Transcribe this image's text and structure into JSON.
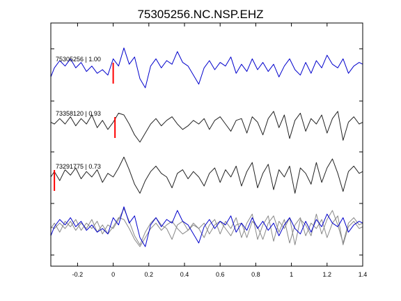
{
  "chart_data": {
    "type": "line",
    "title": "75305256.NC.NSP.EHZ",
    "xlabel": "",
    "ylabel": "",
    "xlim": [
      -0.35,
      1.4
    ],
    "xticks": [
      "-0.2",
      "0",
      "0.2",
      "0.4",
      "0.6",
      "0.8",
      "1",
      "1.2",
      "1.4"
    ],
    "grid": false,
    "colors": {
      "blue": "#0000cc",
      "black": "#222222",
      "gray": "#888888",
      "pick": "#ff0000"
    },
    "series": [
      {
        "name": "75305256 | 1.00",
        "color": "#0000cc",
        "pick": 0.0,
        "x": [
          -0.35,
          -0.33,
          -0.3,
          -0.27,
          -0.24,
          -0.21,
          -0.18,
          -0.15,
          -0.12,
          -0.09,
          -0.06,
          -0.03,
          0.0,
          0.03,
          0.06,
          0.09,
          0.12,
          0.15,
          0.18,
          0.21,
          0.24,
          0.27,
          0.3,
          0.33,
          0.36,
          0.39,
          0.42,
          0.45,
          0.48,
          0.51,
          0.54,
          0.57,
          0.6,
          0.63,
          0.66,
          0.69,
          0.72,
          0.75,
          0.78,
          0.81,
          0.84,
          0.87,
          0.9,
          0.93,
          0.96,
          0.99,
          1.02,
          1.05,
          1.08,
          1.11,
          1.14,
          1.17,
          1.2,
          1.23,
          1.26,
          1.29,
          1.32,
          1.35,
          1.38,
          1.4
        ],
        "y": [
          -0.4,
          0.1,
          0.5,
          0.2,
          0.6,
          0.1,
          0.4,
          -0.1,
          0.2,
          -0.2,
          0.0,
          -0.3,
          0.6,
          0.2,
          1.2,
          0.3,
          0.7,
          -0.5,
          -1.0,
          0.2,
          0.6,
          0.1,
          0.5,
          0.3,
          1.0,
          0.4,
          0.2,
          -0.3,
          -0.8,
          0.1,
          0.5,
          0.0,
          0.4,
          0.2,
          0.7,
          -0.2,
          0.3,
          -0.1,
          0.6,
          0.0,
          0.4,
          -0.1,
          0.3,
          -0.4,
          0.2,
          0.6,
          0.0,
          -0.3,
          0.4,
          -0.2,
          0.5,
          0.1,
          0.8,
          0.3,
          0.1,
          0.6,
          -0.2,
          0.2,
          0.4,
          0.3
        ]
      },
      {
        "name": "73358120 | 0.93",
        "color": "#222222",
        "pick": 0.01,
        "x": [
          -0.35,
          -0.33,
          -0.3,
          -0.27,
          -0.24,
          -0.21,
          -0.18,
          -0.15,
          -0.12,
          -0.09,
          -0.06,
          -0.03,
          0.0,
          0.03,
          0.06,
          0.09,
          0.12,
          0.15,
          0.18,
          0.21,
          0.24,
          0.27,
          0.3,
          0.33,
          0.36,
          0.39,
          0.42,
          0.45,
          0.48,
          0.51,
          0.54,
          0.57,
          0.6,
          0.63,
          0.66,
          0.69,
          0.72,
          0.75,
          0.78,
          0.81,
          0.84,
          0.87,
          0.9,
          0.93,
          0.96,
          0.99,
          1.02,
          1.05,
          1.08,
          1.11,
          1.14,
          1.17,
          1.2,
          1.23,
          1.26,
          1.29,
          1.32,
          1.35,
          1.38,
          1.4
        ],
        "y": [
          0.1,
          0.0,
          0.3,
          0.0,
          0.4,
          -0.1,
          0.3,
          0.0,
          0.5,
          -0.2,
          0.2,
          -0.3,
          0.1,
          0.6,
          0.5,
          0.0,
          -0.6,
          -1.0,
          -0.5,
          0.0,
          0.3,
          -0.1,
          0.2,
          0.4,
          0.0,
          -0.3,
          -0.1,
          0.2,
          0.0,
          0.3,
          -0.3,
          0.2,
          0.4,
          0.0,
          -0.4,
          0.2,
          0.3,
          -0.5,
          0.4,
          0.1,
          -0.6,
          0.3,
          0.7,
          -0.2,
          0.5,
          -0.8,
          0.2,
          0.6,
          -0.4,
          0.3,
          0.0,
          0.5,
          -0.5,
          0.3,
          0.7,
          -0.9,
          0.1,
          0.4,
          0.0,
          0.1
        ]
      },
      {
        "name": "73291775 | 0.73",
        "color": "#222222",
        "pick": -0.33,
        "x": [
          -0.35,
          -0.33,
          -0.3,
          -0.27,
          -0.24,
          -0.21,
          -0.18,
          -0.15,
          -0.12,
          -0.09,
          -0.06,
          -0.03,
          0.0,
          0.03,
          0.06,
          0.09,
          0.12,
          0.15,
          0.18,
          0.21,
          0.24,
          0.27,
          0.3,
          0.33,
          0.36,
          0.39,
          0.42,
          0.45,
          0.48,
          0.51,
          0.54,
          0.57,
          0.6,
          0.63,
          0.66,
          0.69,
          0.72,
          0.75,
          0.78,
          0.81,
          0.84,
          0.87,
          0.9,
          0.93,
          0.96,
          0.99,
          1.02,
          1.05,
          1.08,
          1.11,
          1.14,
          1.17,
          1.2,
          1.23,
          1.26,
          1.29,
          1.32,
          1.35,
          1.38,
          1.4
        ],
        "y": [
          0.0,
          0.3,
          -0.2,
          0.4,
          0.1,
          0.5,
          -0.1,
          0.3,
          0.0,
          0.4,
          -0.3,
          0.2,
          0.0,
          0.5,
          1.1,
          0.4,
          -0.4,
          -0.9,
          -0.2,
          0.3,
          0.6,
          0.2,
          0.0,
          -0.6,
          0.2,
          0.4,
          -0.1,
          0.3,
          0.0,
          -0.5,
          0.2,
          0.5,
          -0.3,
          0.4,
          0.0,
          0.6,
          -0.5,
          0.3,
          0.8,
          -0.6,
          0.2,
          0.7,
          -0.7,
          0.4,
          0.0,
          0.6,
          -0.9,
          0.5,
          0.2,
          -0.4,
          0.8,
          -0.3,
          0.5,
          1.0,
          0.2,
          -0.8,
          0.3,
          0.6,
          0.2,
          0.3
        ]
      },
      {
        "name": "",
        "color": "#0000cc",
        "x": [
          -0.35,
          -0.33,
          -0.3,
          -0.27,
          -0.24,
          -0.21,
          -0.18,
          -0.15,
          -0.12,
          -0.09,
          -0.06,
          -0.03,
          0.0,
          0.03,
          0.06,
          0.09,
          0.12,
          0.15,
          0.18,
          0.21,
          0.24,
          0.27,
          0.3,
          0.33,
          0.36,
          0.39,
          0.42,
          0.45,
          0.48,
          0.51,
          0.54,
          0.57,
          0.6,
          0.63,
          0.66,
          0.69,
          0.72,
          0.75,
          0.78,
          0.81,
          0.84,
          0.87,
          0.9,
          0.93,
          0.96,
          0.99,
          1.02,
          1.05,
          1.08,
          1.11,
          1.14,
          1.17,
          1.2,
          1.23,
          1.26,
          1.29,
          1.32,
          1.35,
          1.38,
          1.4
        ],
        "y": [
          -0.4,
          0.1,
          0.5,
          0.2,
          0.6,
          0.1,
          0.4,
          -0.1,
          0.2,
          -0.2,
          0.0,
          -0.3,
          0.6,
          0.2,
          1.2,
          0.3,
          0.7,
          -0.5,
          -1.0,
          0.2,
          0.6,
          0.1,
          0.5,
          0.3,
          1.0,
          0.4,
          0.2,
          -0.3,
          -0.8,
          0.1,
          0.5,
          0.0,
          0.4,
          0.2,
          0.7,
          -0.2,
          0.3,
          -0.1,
          0.6,
          0.0,
          0.4,
          -0.1,
          0.3,
          -0.4,
          0.2,
          0.6,
          0.0,
          -0.3,
          0.4,
          -0.2,
          0.5,
          0.1,
          0.8,
          0.3,
          0.1,
          0.6,
          -0.2,
          0.2,
          0.4,
          0.3
        ]
      },
      {
        "name": "",
        "color": "#888888",
        "x": [
          -0.35,
          -0.33,
          -0.3,
          -0.27,
          -0.24,
          -0.21,
          -0.18,
          -0.15,
          -0.12,
          -0.09,
          -0.06,
          -0.03,
          0.0,
          0.03,
          0.06,
          0.09,
          0.12,
          0.15,
          0.18,
          0.21,
          0.24,
          0.27,
          0.3,
          0.33,
          0.36,
          0.39,
          0.42,
          0.45,
          0.48,
          0.51,
          0.54,
          0.57,
          0.6,
          0.63,
          0.66,
          0.69,
          0.72,
          0.75,
          0.78,
          0.81,
          0.84,
          0.87,
          0.9,
          0.93,
          0.96,
          0.99,
          1.02,
          1.05,
          1.08,
          1.11,
          1.14,
          1.17,
          1.2,
          1.23,
          1.26,
          1.29,
          1.32,
          1.35,
          1.38,
          1.4
        ],
        "y": [
          0.1,
          0.0,
          0.3,
          0.0,
          0.4,
          -0.1,
          0.3,
          0.0,
          0.5,
          -0.2,
          0.2,
          -0.3,
          0.1,
          0.6,
          0.5,
          0.0,
          -0.6,
          -1.0,
          -0.5,
          0.0,
          0.3,
          -0.1,
          0.2,
          0.4,
          0.0,
          -0.3,
          -0.1,
          0.2,
          0.0,
          0.3,
          -0.3,
          0.2,
          0.4,
          0.0,
          -0.4,
          0.2,
          0.3,
          -0.5,
          0.4,
          0.1,
          -0.6,
          0.3,
          0.7,
          -0.2,
          0.5,
          -0.8,
          0.2,
          0.6,
          -0.4,
          0.3,
          0.0,
          0.5,
          -0.5,
          0.3,
          0.7,
          -0.9,
          0.1,
          0.4,
          0.0,
          0.1
        ]
      },
      {
        "name": "",
        "color": "#888888",
        "x": [
          -0.35,
          -0.33,
          -0.3,
          -0.27,
          -0.24,
          -0.21,
          -0.18,
          -0.15,
          -0.12,
          -0.09,
          -0.06,
          -0.03,
          0.0,
          0.03,
          0.06,
          0.09,
          0.12,
          0.15,
          0.18,
          0.21,
          0.24,
          0.27,
          0.3,
          0.33,
          0.36,
          0.39,
          0.42,
          0.45,
          0.48,
          0.51,
          0.54,
          0.57,
          0.6,
          0.63,
          0.66,
          0.69,
          0.72,
          0.75,
          0.78,
          0.81,
          0.84,
          0.87,
          0.9,
          0.93,
          0.96,
          0.99,
          1.02,
          1.05,
          1.08,
          1.11,
          1.14,
          1.17,
          1.2,
          1.23,
          1.26,
          1.29,
          1.32,
          1.35,
          1.38,
          1.4
        ],
        "y": [
          0.0,
          0.3,
          -0.2,
          0.4,
          0.1,
          0.5,
          -0.1,
          0.3,
          0.0,
          0.4,
          -0.3,
          0.2,
          0.0,
          0.5,
          1.1,
          0.4,
          -0.4,
          -0.9,
          -0.2,
          0.3,
          0.6,
          0.2,
          0.0,
          -0.6,
          0.2,
          0.4,
          -0.1,
          0.3,
          0.0,
          -0.5,
          0.2,
          0.5,
          -0.3,
          0.4,
          0.0,
          0.6,
          -0.5,
          0.3,
          0.8,
          -0.6,
          0.2,
          0.7,
          -0.7,
          0.4,
          0.0,
          0.6,
          -0.9,
          0.5,
          0.2,
          -0.4,
          0.8,
          -0.3,
          0.5,
          1.0,
          0.2,
          -0.8,
          0.3,
          0.6,
          0.2,
          0.3
        ]
      }
    ]
  }
}
